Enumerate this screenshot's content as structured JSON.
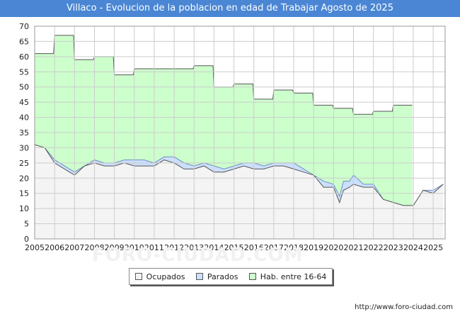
{
  "header": {
    "title": "Villaco - Evolucion de la poblacion en edad de Trabajar Agosto de 2025"
  },
  "footer": {
    "source": "http://www.foro-ciudad.com",
    "watermark": "FORO-CIUDAD.COM"
  },
  "colors": {
    "title_bg": "#4a86d4",
    "hab_fill": "#ccffcc",
    "hab_line": "#555555",
    "parados_fill": "#cce0ff",
    "parados_line": "#6f8fbf",
    "ocupados_fill": "#f4f4f4",
    "ocupados_line": "#555555",
    "grid": "#cccccc"
  },
  "chart_data": {
    "type": "area",
    "title": "Villaco - Evolucion de la poblacion en edad de Trabajar Agosto de 2025",
    "x_ticks": [
      "2005",
      "2006",
      "2007",
      "2008",
      "2009",
      "2010",
      "2011",
      "2012",
      "2013",
      "2014",
      "2015",
      "2016",
      "2017",
      "2018",
      "2019",
      "2020",
      "2021",
      "2022",
      "2023",
      "2024",
      "2025"
    ],
    "y_ticks": [
      "0",
      "5",
      "10",
      "15",
      "20",
      "25",
      "30",
      "35",
      "40",
      "45",
      "50",
      "55",
      "60",
      "65",
      "70"
    ],
    "xlim": [
      2005,
      2025.6
    ],
    "ylim": [
      0,
      70
    ],
    "grid": true,
    "legend_position": "bottom",
    "series": [
      {
        "name": "Hab. entre 16-64",
        "x": [
          2005,
          2005.95,
          2006,
          2006.95,
          2007,
          2007.95,
          2008,
          2008.95,
          2009,
          2009.95,
          2010,
          2010.95,
          2011,
          2011.95,
          2012,
          2012.95,
          2013,
          2013.95,
          2014,
          2014.95,
          2015,
          2015.95,
          2016,
          2016.95,
          2017,
          2017.95,
          2018,
          2018.95,
          2019,
          2019.95,
          2020,
          2020.95,
          2021,
          2021.95,
          2022,
          2022.95,
          2023,
          2023.95
        ],
        "values": [
          61,
          61,
          67,
          67,
          59,
          59,
          60,
          60,
          54,
          54,
          56,
          56,
          56,
          56,
          56,
          56,
          57,
          57,
          50,
          50,
          51,
          51,
          46,
          46,
          49,
          49,
          48,
          48,
          44,
          44,
          43,
          43,
          41,
          41,
          42,
          42,
          44,
          44
        ]
      },
      {
        "name": "Parados",
        "x": [
          2005,
          2005.5,
          2006,
          2006.5,
          2007,
          2007.5,
          2008,
          2008.5,
          2009,
          2009.5,
          2010,
          2010.5,
          2011,
          2011.5,
          2012,
          2012.5,
          2013,
          2013.5,
          2014,
          2014.5,
          2015,
          2015.5,
          2016,
          2016.5,
          2017,
          2017.5,
          2018,
          2018.5,
          2019,
          2019.5,
          2020,
          2020.3,
          2020.5,
          2020.8,
          2021,
          2021.5,
          2022,
          2022.5,
          2023,
          2023.5,
          2024,
          2024.5,
          2025,
          2025.5
        ],
        "values": [
          31,
          30,
          26,
          24,
          22,
          24,
          26,
          25,
          25,
          26,
          26,
          26,
          25,
          27,
          27,
          25,
          24,
          25,
          24,
          23,
          24,
          25,
          25,
          24,
          25,
          25,
          25,
          23,
          21,
          19,
          18,
          14,
          19,
          19,
          21,
          18,
          18,
          13,
          12,
          11,
          11,
          16,
          16,
          18
        ]
      },
      {
        "name": "Ocupados",
        "x": [
          2005,
          2005.5,
          2006,
          2006.5,
          2007,
          2007.5,
          2008,
          2008.5,
          2009,
          2009.5,
          2010,
          2010.5,
          2011,
          2011.5,
          2012,
          2012.5,
          2013,
          2013.5,
          2014,
          2014.5,
          2015,
          2015.5,
          2016,
          2016.5,
          2017,
          2017.5,
          2018,
          2018.5,
          2019,
          2019.5,
          2020,
          2020.3,
          2020.5,
          2020.8,
          2021,
          2021.5,
          2022,
          2022.5,
          2023,
          2023.5,
          2024,
          2024.5,
          2025,
          2025.5
        ],
        "values": [
          31,
          30,
          25,
          23,
          21,
          24,
          25,
          24,
          24,
          25,
          24,
          24,
          24,
          26,
          25,
          23,
          23,
          24,
          22,
          22,
          23,
          24,
          23,
          23,
          24,
          24,
          23,
          22,
          21,
          17,
          17,
          12,
          16,
          17,
          18,
          17,
          17,
          13,
          12,
          11,
          11,
          16,
          15,
          18
        ]
      }
    ]
  }
}
